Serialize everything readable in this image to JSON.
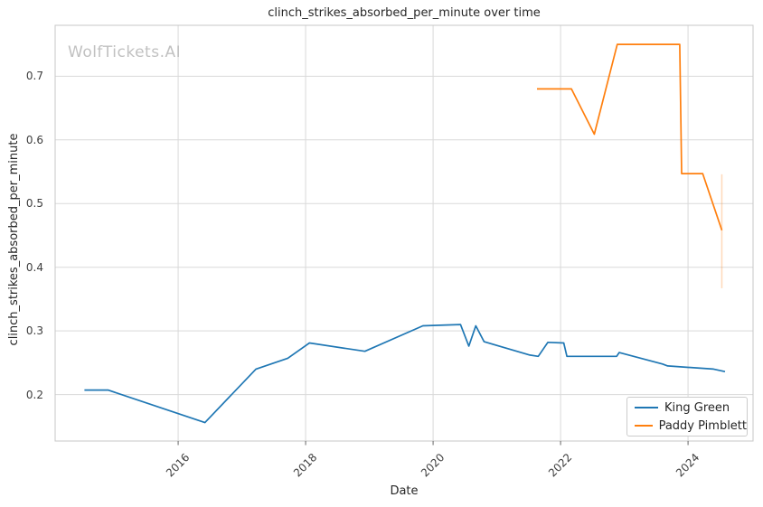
{
  "watermark": "WolfTickets.AI",
  "chart_data": {
    "type": "line",
    "title": "clinch_strikes_absorbed_per_minute over time",
    "xlabel": "Date",
    "ylabel": "clinch_strikes_absorbed_per_minute",
    "xlim": [
      2014.07,
      2025.02
    ],
    "ylim": [
      0.127,
      0.78
    ],
    "xticks": [
      2016,
      2018,
      2020,
      2022,
      2024
    ],
    "yticks": [
      0.2,
      0.3,
      0.4,
      0.5,
      0.6,
      0.7
    ],
    "grid": true,
    "grid_color": "#d9d9d9",
    "spine_color": "#c7c7c7",
    "legend_position": "lower right",
    "series": [
      {
        "name": "King Green",
        "color": "#1f77b4",
        "points": [
          [
            2014.53,
            0.207
          ],
          [
            2014.9,
            0.207
          ],
          [
            2016.42,
            0.156
          ],
          [
            2017.22,
            0.24
          ],
          [
            2017.72,
            0.257
          ],
          [
            2018.06,
            0.281
          ],
          [
            2018.93,
            0.268
          ],
          [
            2019.84,
            0.308
          ],
          [
            2020.43,
            0.31
          ],
          [
            2020.56,
            0.276
          ],
          [
            2020.67,
            0.308
          ],
          [
            2020.8,
            0.283
          ],
          [
            2021.52,
            0.262
          ],
          [
            2021.65,
            0.26
          ],
          [
            2021.8,
            0.282
          ],
          [
            2022.05,
            0.281
          ],
          [
            2022.1,
            0.26
          ],
          [
            2022.88,
            0.26
          ],
          [
            2022.92,
            0.266
          ],
          [
            2023.6,
            0.248
          ],
          [
            2023.68,
            0.245
          ],
          [
            2024.4,
            0.24
          ],
          [
            2024.58,
            0.236
          ]
        ]
      },
      {
        "name": "Paddy Pimblett",
        "color": "#ff7f0e",
        "points": [
          [
            2021.63,
            0.68
          ],
          [
            2022.17,
            0.68
          ],
          [
            2022.53,
            0.609
          ],
          [
            2022.89,
            0.75
          ],
          [
            2023.87,
            0.75
          ],
          [
            2023.9,
            0.547
          ],
          [
            2024.23,
            0.547
          ],
          [
            2024.53,
            0.458
          ]
        ]
      }
    ],
    "error_bar": {
      "series": "Paddy Pimblett",
      "x": 2024.53,
      "y_from": 0.367,
      "y_to": 0.546,
      "color": "#ff7f0e",
      "opacity": 0.28
    }
  }
}
